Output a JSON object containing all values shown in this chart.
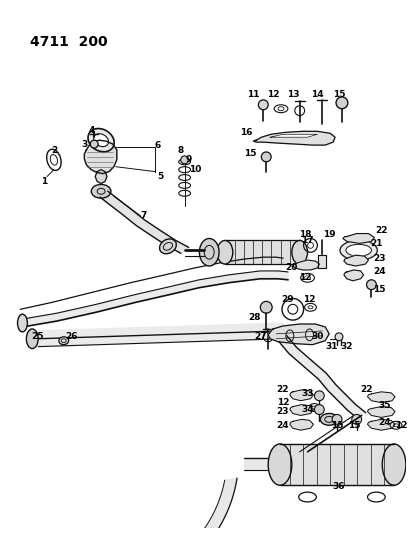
{
  "title": "4711  200",
  "bg_color": "#ffffff",
  "line_color": "#111111",
  "text_color": "#000000",
  "fig_w": 4.1,
  "fig_h": 5.33,
  "dpi": 100
}
